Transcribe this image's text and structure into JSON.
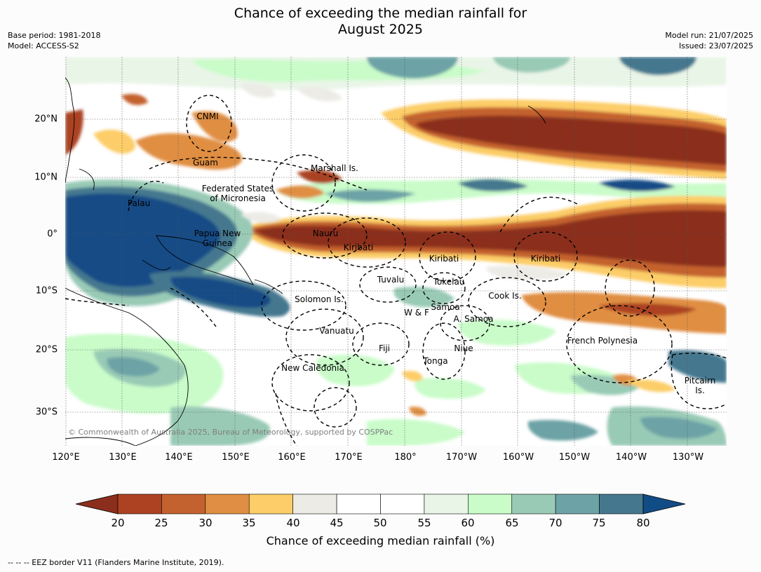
{
  "title_line1": "Chance of exceeding the median rainfall for",
  "title_line2": "August 2025",
  "meta": {
    "base_period": "Base period: 1981-2018",
    "model": "Model: ACCESS-S2",
    "model_run": "Model run: 21/07/2025",
    "issued": "Issued: 23/07/2025"
  },
  "lat_ticks": [
    "20°N",
    "10°N",
    "0°",
    "10°S",
    "20°S",
    "30°S"
  ],
  "lon_ticks": [
    "120°E",
    "130°E",
    "140°E",
    "150°E",
    "160°E",
    "170°E",
    "180°",
    "170°W",
    "160°W",
    "150°W",
    "140°W",
    "130°W"
  ],
  "colorbar": {
    "ticks": [
      "20",
      "25",
      "30",
      "35",
      "40",
      "45",
      "50",
      "55",
      "60",
      "65",
      "70",
      "75",
      "80"
    ],
    "label": "Chance of exceeding median rainfall (%)",
    "under_color": "#8b2f1c",
    "over_color": "#124c86",
    "colors": [
      "#ac4222",
      "#c4622f",
      "#e08e43",
      "#fccd68",
      "#ecebe6",
      "#ffffff",
      "#ffffff",
      "#e9f5e7",
      "#c9fcc9",
      "#99cab6",
      "#6da3a6",
      "#45788f"
    ]
  },
  "map_labels": {
    "cnmi": "CNMI",
    "guam": "Guam",
    "marshall": "Marshall Is.",
    "fsm1": "Federated States",
    "fsm2": "of Micronesia",
    "palau": "Palau",
    "png1": "Papua New",
    "png2": "Guinea",
    "nauru": "Nauru",
    "kiribati1": "Kiribati",
    "kiribati2": "Kiribati",
    "kiribati3": "Kiribati",
    "tuvalu": "Tuvalu",
    "tokelau": "Tokelau",
    "cook": "Cook Is.",
    "solomon": "Solomon Is.",
    "samoa": "Samoa",
    "wf": "W & F",
    "asamoa": "A. Samoa",
    "vanuatu": "Vanuatu",
    "fiji": "Fiji",
    "niue": "Niue",
    "frpoly": "French Polynesia",
    "tonga": "Tonga",
    "newcal": "New Caledonia",
    "pitcairn1": "Pitcairn",
    "pitcairn2": "Is."
  },
  "copyright": "© Commonwealth of Australia 2025, Bureau of Meteorology, supported by COSPPac",
  "footnote": "--  --  -- EEZ border V11 (Flanders Marine Institute, 2019)."
}
